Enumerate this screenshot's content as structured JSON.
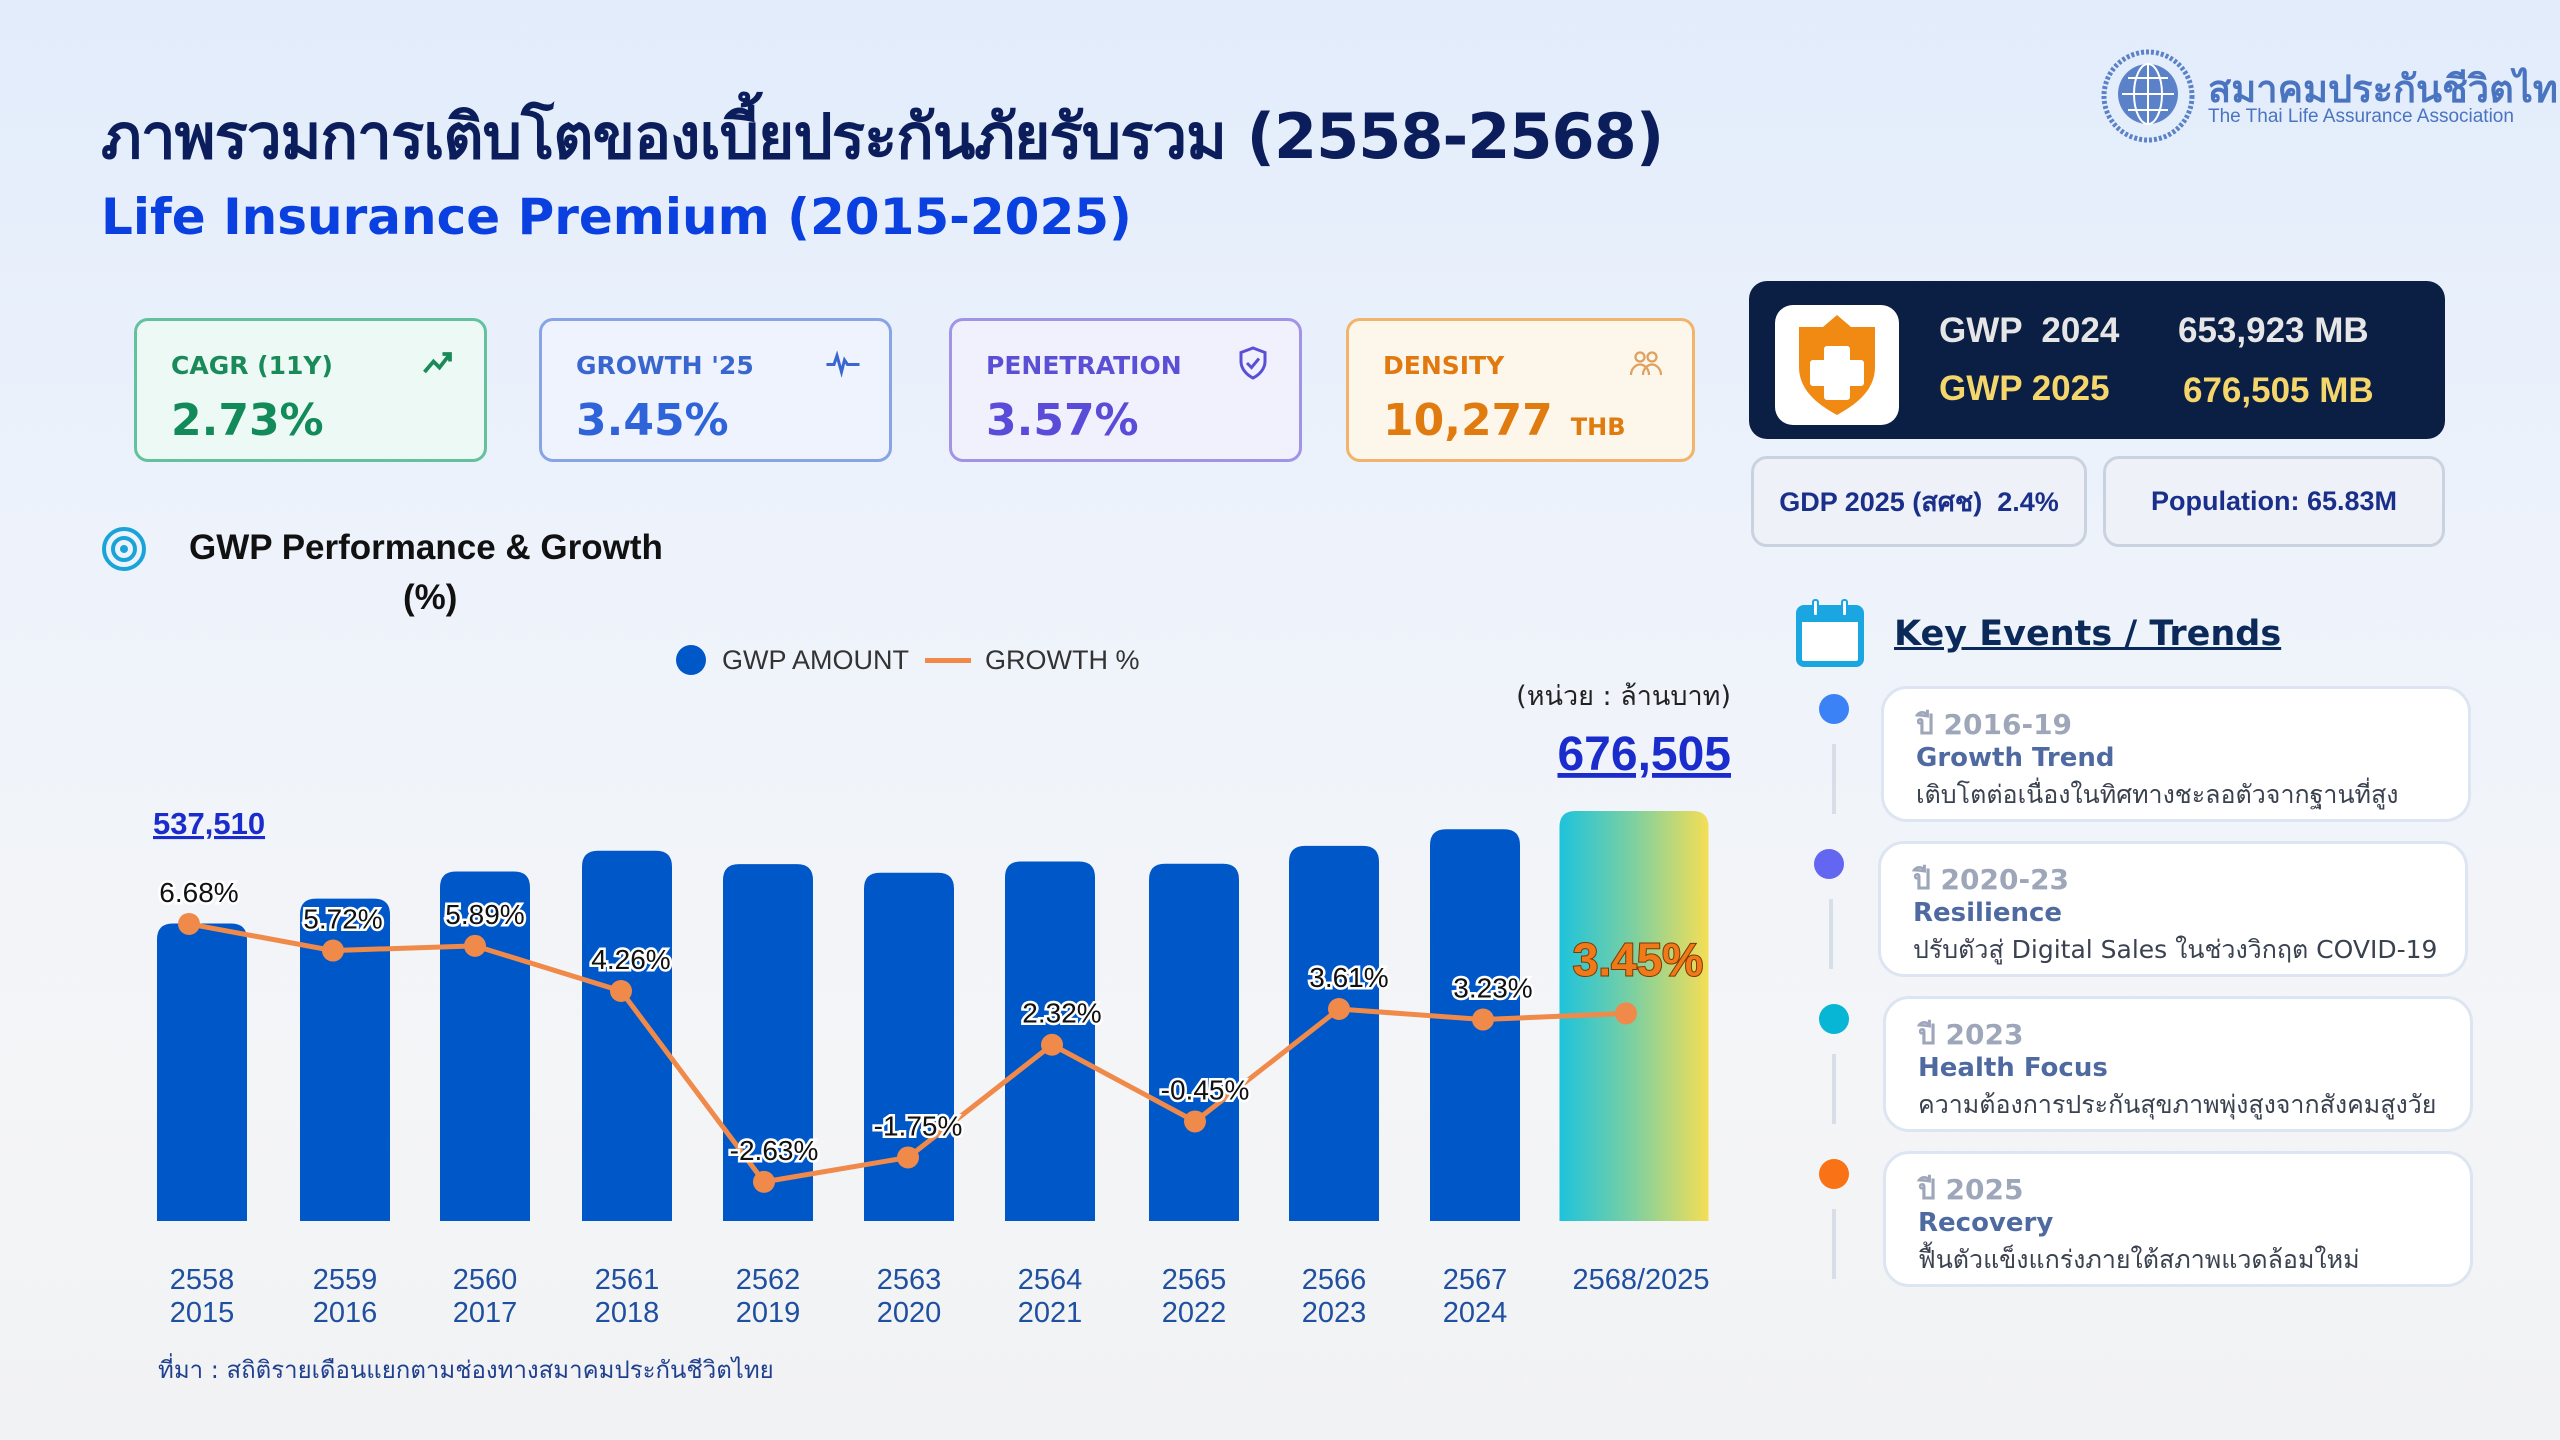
{
  "header": {
    "title": "ภาพรวมการเติบโตของเบี้ยประกันภัยรับรวม  (2558-2568)",
    "subtitle": "Life Insurance Premium (2015-2025)"
  },
  "logo": {
    "thai": "สมาคมประกันชีวิตไทย",
    "english": "The Thai Life Assurance Association"
  },
  "kpis": [
    {
      "label": "CAGR (11Y)",
      "value": "2.73%",
      "icon": "trending-up-icon",
      "color": "#128a5a"
    },
    {
      "label": "GROWTH '25",
      "value": "3.45%",
      "icon": "pulse-icon",
      "color": "#2f63d9"
    },
    {
      "label": "PENETRATION",
      "value": "3.57%",
      "icon": "shield-check-icon",
      "color": "#5a4bd8"
    },
    {
      "label": "DENSITY",
      "value": "10,277",
      "unit": "THB",
      "icon": "people-icon",
      "color": "#e07b10"
    }
  ],
  "gwp_summary": {
    "row1_label": "GWP  2024",
    "row1_value": "653,923 MB",
    "row2_label": "GWP 2025",
    "row2_value": "676,505 MB",
    "icon": "shield-plus-icon"
  },
  "stats": {
    "gdp": "GDP 2025 (สศช)  2.4%",
    "population": "Population: 65.83M"
  },
  "chart_section": {
    "title": "GWP Performance & Growth",
    "title2": "(%)",
    "icon": "target-icon",
    "unit": "(หน่วย : ล้านบาท)",
    "source": "ที่มา : สถิติรายเดือนแยกตามช่องทางสมาคมประกันชีวิตไทย"
  },
  "chart_data": {
    "type": "bar",
    "legend": [
      {
        "name": "GWP AMOUNT",
        "kind": "bar",
        "color": "#0057c8"
      },
      {
        "name": "GROWTH %",
        "kind": "line",
        "color": "#f08a4b"
      }
    ],
    "legend_placement": "top-center",
    "categories": [
      [
        "2558",
        "2015"
      ],
      [
        "2559",
        "2016"
      ],
      [
        "2560",
        "2017"
      ],
      [
        "2561",
        "2018"
      ],
      [
        "2562",
        "2019"
      ],
      [
        "2563",
        "2020"
      ],
      [
        "2564",
        "2021"
      ],
      [
        "2565",
        "2022"
      ],
      [
        "2566",
        "2023"
      ],
      [
        "2567",
        "2024"
      ],
      [
        "2568/2025",
        ""
      ]
    ],
    "series": [
      {
        "name": "GWP AMOUNT",
        "type": "bar",
        "values": [
          537510,
          568256,
          601726,
          627359,
          610859,
          600169,
          614093,
          611330,
          633399,
          653923,
          676505
        ]
      },
      {
        "name": "GROWTH %",
        "type": "line",
        "values": [
          6.68,
          5.72,
          5.89,
          4.26,
          -2.63,
          -1.75,
          2.32,
          -0.45,
          3.61,
          3.23,
          3.45
        ],
        "labels": [
          "6.68%",
          "5.72%",
          "5.89%",
          "4.26%",
          "-2.63%",
          "-1.75%",
          "2.32%",
          "-0.45%",
          "3.61%",
          "3.23%",
          "3.45%"
        ]
      }
    ],
    "value_labels": {
      "first": "537,510",
      "last": "676,505"
    },
    "bar_ylim": [
      170000,
      680000
    ],
    "grid": false
  },
  "events": {
    "title": "Key Events / Trends",
    "icon": "calendar-icon",
    "items": [
      {
        "year": "ปี 2016-19",
        "name": "Growth Trend",
        "desc": "เติบโตต่อเนื่องในทิศทางชะลอตัวจากฐานที่สูง",
        "color": "#3b82f6"
      },
      {
        "year": "ปี 2020-23",
        "name": "Resilience",
        "desc": "ปรับตัวสู่ Digital Sales ในช่วงวิกฤต COVID-19",
        "color": "#6366f1"
      },
      {
        "year": "ปี 2023",
        "name": "Health Focus",
        "desc": "ความต้องการประกันสุขภาพพุ่งสูงจากสังคมสูงวัย",
        "color": "#06b6d4"
      },
      {
        "year": "ปี 2025",
        "name": "Recovery",
        "desc": "ฟื้นตัวแข็งแกร่งภายใต้สภาพแวดล้อมใหม่",
        "color": "#f97316"
      }
    ]
  }
}
